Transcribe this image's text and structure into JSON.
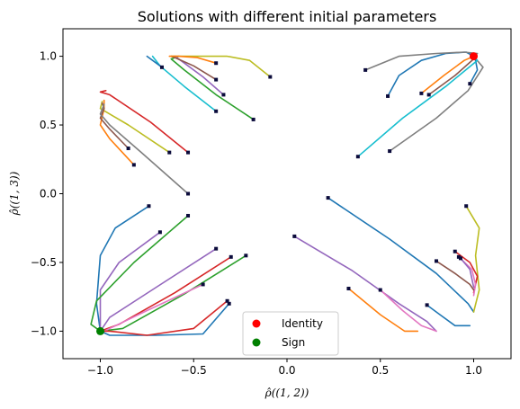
{
  "chart_data": {
    "type": "line",
    "title": "Solutions with different initial parameters",
    "xlabel": "ρ̂((1, 2))",
    "ylabel": "ρ̂((1, 3))",
    "xlim": [
      -1.2,
      1.2
    ],
    "ylim": [
      -1.2,
      1.2
    ],
    "x_ticks": [
      -1.0,
      -0.5,
      0.0,
      0.5,
      1.0
    ],
    "x_tick_labels": [
      "−1.0",
      "−0.5",
      "0.0",
      "0.5",
      "1.0"
    ],
    "y_ticks": [
      -1.0,
      -0.5,
      0.0,
      0.5,
      1.0
    ],
    "y_tick_labels": [
      "−1.0",
      "−0.5",
      "0.0",
      "0.5",
      "1.0"
    ],
    "grid": false,
    "legend_position": "bottom-center",
    "legend": [
      {
        "label": "Identity",
        "color": "#ff0000"
      },
      {
        "label": "Sign",
        "color": "#008000"
      }
    ],
    "endpoints": [
      {
        "name": "Identity",
        "x": 1.0,
        "y": 1.0,
        "color": "#ff0000"
      },
      {
        "name": "Sign",
        "x": -1.0,
        "y": -1.0,
        "color": "#008000"
      }
    ],
    "start_marker_color": "#0b0b3b",
    "trajectories": [
      {
        "color": "#1f77b4",
        "points": [
          [
            0.54,
            0.71
          ],
          [
            0.6,
            0.86
          ],
          [
            0.72,
            0.97
          ],
          [
            0.85,
            1.02
          ],
          [
            0.96,
            1.03
          ],
          [
            1.0,
            1.0
          ]
        ]
      },
      {
        "color": "#7f7f7f",
        "points": [
          [
            0.42,
            0.9
          ],
          [
            0.6,
            1.0
          ],
          [
            0.8,
            1.02
          ],
          [
            0.95,
            1.03
          ],
          [
            1.02,
            1.02
          ],
          [
            1.0,
            1.0
          ]
        ]
      },
      {
        "color": "#ff7f0e",
        "points": [
          [
            0.72,
            0.73
          ],
          [
            0.84,
            0.86
          ],
          [
            0.95,
            0.97
          ],
          [
            1.0,
            1.0
          ]
        ]
      },
      {
        "color": "#8c564b",
        "points": [
          [
            0.76,
            0.72
          ],
          [
            0.9,
            0.86
          ],
          [
            1.0,
            0.98
          ],
          [
            1.0,
            1.0
          ]
        ]
      },
      {
        "color": "#1f77b4",
        "points": [
          [
            0.98,
            0.8
          ],
          [
            1.02,
            0.9
          ],
          [
            1.01,
            0.97
          ],
          [
            1.0,
            1.0
          ]
        ]
      },
      {
        "color": "#7f7f7f",
        "points": [
          [
            0.55,
            0.31
          ],
          [
            0.8,
            0.55
          ],
          [
            0.97,
            0.75
          ],
          [
            1.05,
            0.92
          ],
          [
            1.0,
            1.0
          ]
        ]
      },
      {
        "color": "#17becf",
        "points": [
          [
            0.38,
            0.27
          ],
          [
            0.62,
            0.55
          ],
          [
            0.85,
            0.78
          ],
          [
            1.02,
            0.97
          ],
          [
            1.0,
            1.0
          ]
        ]
      },
      {
        "color": "#2ca02c",
        "points": [
          [
            -0.18,
            0.54
          ],
          [
            -0.38,
            0.72
          ],
          [
            -0.55,
            0.9
          ],
          [
            -0.62,
            0.98
          ],
          [
            -0.58,
            1.0
          ]
        ]
      },
      {
        "color": "#bcbd22",
        "points": [
          [
            -0.09,
            0.85
          ],
          [
            -0.2,
            0.97
          ],
          [
            -0.32,
            1.0
          ],
          [
            -0.45,
            1.0
          ],
          [
            -0.62,
            1.0
          ]
        ]
      },
      {
        "color": "#9467bd",
        "points": [
          [
            -0.34,
            0.72
          ],
          [
            -0.45,
            0.85
          ],
          [
            -0.55,
            0.95
          ],
          [
            -0.6,
            1.0
          ]
        ]
      },
      {
        "color": "#8c564b",
        "points": [
          [
            -0.38,
            0.83
          ],
          [
            -0.5,
            0.93
          ],
          [
            -0.6,
            0.99
          ],
          [
            -0.62,
            1.0
          ]
        ]
      },
      {
        "color": "#ff7f0e",
        "points": [
          [
            -0.38,
            0.95
          ],
          [
            -0.48,
            0.99
          ],
          [
            -0.58,
            1.0
          ],
          [
            -0.63,
            1.0
          ]
        ]
      },
      {
        "color": "#17becf",
        "points": [
          [
            -0.38,
            0.6
          ],
          [
            -0.55,
            0.78
          ],
          [
            -0.68,
            0.93
          ],
          [
            -0.72,
            1.0
          ]
        ]
      },
      {
        "color": "#1f77b4",
        "points": [
          [
            -0.67,
            0.92
          ],
          [
            -0.72,
            0.97
          ],
          [
            -0.75,
            1.0
          ]
        ]
      },
      {
        "color": "#d62728",
        "points": [
          [
            -0.53,
            0.3
          ],
          [
            -0.73,
            0.52
          ],
          [
            -0.95,
            0.72
          ],
          [
            -1.0,
            0.74
          ],
          [
            -0.97,
            0.75
          ]
        ]
      },
      {
        "color": "#bcbd22",
        "points": [
          [
            -0.63,
            0.3
          ],
          [
            -0.85,
            0.5
          ],
          [
            -1.0,
            0.62
          ],
          [
            -0.99,
            0.67
          ]
        ]
      },
      {
        "color": "#ff7f0e",
        "points": [
          [
            -0.82,
            0.21
          ],
          [
            -0.95,
            0.4
          ],
          [
            -1.0,
            0.5
          ],
          [
            -0.98,
            0.62
          ],
          [
            -0.98,
            0.68
          ]
        ]
      },
      {
        "color": "#8c564b",
        "points": [
          [
            -0.85,
            0.33
          ],
          [
            -0.95,
            0.47
          ],
          [
            -1.0,
            0.55
          ],
          [
            -0.98,
            0.62
          ],
          [
            -0.99,
            0.66
          ]
        ]
      },
      {
        "color": "#7f7f7f",
        "points": [
          [
            -0.53,
            0.0
          ],
          [
            -0.78,
            0.3
          ],
          [
            -0.95,
            0.5
          ],
          [
            -1.0,
            0.58
          ],
          [
            -0.98,
            0.65
          ]
        ]
      },
      {
        "color": "#1f77b4",
        "points": [
          [
            -0.74,
            -0.09
          ],
          [
            -0.92,
            -0.25
          ],
          [
            -1.0,
            -0.45
          ],
          [
            -1.02,
            -0.8
          ],
          [
            -1.0,
            -1.0
          ]
        ]
      },
      {
        "color": "#9467bd",
        "points": [
          [
            -0.68,
            -0.28
          ],
          [
            -0.9,
            -0.5
          ],
          [
            -1.0,
            -0.7
          ],
          [
            -1.0,
            -1.0
          ]
        ]
      },
      {
        "color": "#2ca02c",
        "points": [
          [
            -0.53,
            -0.16
          ],
          [
            -0.82,
            -0.5
          ],
          [
            -1.02,
            -0.78
          ],
          [
            -1.05,
            -0.95
          ],
          [
            -1.0,
            -1.0
          ]
        ]
      },
      {
        "color": "#9467bd",
        "points": [
          [
            -0.38,
            -0.4
          ],
          [
            -0.7,
            -0.68
          ],
          [
            -0.95,
            -0.9
          ],
          [
            -1.0,
            -1.0
          ]
        ]
      },
      {
        "color": "#d62728",
        "points": [
          [
            -0.3,
            -0.46
          ],
          [
            -0.6,
            -0.72
          ],
          [
            -0.9,
            -0.95
          ],
          [
            -1.0,
            -1.0
          ]
        ]
      },
      {
        "color": "#2ca02c",
        "points": [
          [
            -0.22,
            -0.45
          ],
          [
            -0.55,
            -0.73
          ],
          [
            -0.88,
            -0.98
          ],
          [
            -1.0,
            -1.0
          ]
        ]
      },
      {
        "color": "#e377c2",
        "points": [
          [
            -0.45,
            -0.66
          ],
          [
            -0.75,
            -0.85
          ],
          [
            -0.98,
            -1.0
          ],
          [
            -1.0,
            -1.0
          ]
        ]
      },
      {
        "color": "#1f77b4",
        "points": [
          [
            -0.31,
            -0.8
          ],
          [
            -0.45,
            -1.02
          ],
          [
            -0.7,
            -1.03
          ],
          [
            -0.95,
            -1.03
          ],
          [
            -1.0,
            -1.0
          ]
        ]
      },
      {
        "color": "#d62728",
        "points": [
          [
            -0.32,
            -0.78
          ],
          [
            -0.5,
            -0.98
          ],
          [
            -0.75,
            -1.03
          ],
          [
            -0.95,
            -1.0
          ],
          [
            -1.0,
            -1.0
          ]
        ]
      },
      {
        "color": "#1f77b4",
        "points": [
          [
            0.22,
            -0.03
          ],
          [
            0.55,
            -0.33
          ],
          [
            0.8,
            -0.58
          ],
          [
            0.97,
            -0.8
          ],
          [
            1.0,
            -0.86
          ]
        ]
      },
      {
        "color": "#9467bd",
        "points": [
          [
            0.04,
            -0.31
          ],
          [
            0.35,
            -0.56
          ],
          [
            0.6,
            -0.8
          ],
          [
            0.75,
            -0.93
          ],
          [
            0.8,
            -1.0
          ]
        ]
      },
      {
        "color": "#ff7f0e",
        "points": [
          [
            0.33,
            -0.69
          ],
          [
            0.5,
            -0.88
          ],
          [
            0.63,
            -1.0
          ],
          [
            0.7,
            -1.0
          ]
        ]
      },
      {
        "color": "#e377c2",
        "points": [
          [
            0.5,
            -0.7
          ],
          [
            0.62,
            -0.85
          ],
          [
            0.72,
            -0.96
          ],
          [
            0.8,
            -1.0
          ]
        ]
      },
      {
        "color": "#1f77b4",
        "points": [
          [
            0.75,
            -0.81
          ],
          [
            0.82,
            -0.88
          ],
          [
            0.9,
            -0.96
          ],
          [
            0.98,
            -0.96
          ]
        ]
      },
      {
        "color": "#bcbd22",
        "points": [
          [
            0.96,
            -0.09
          ],
          [
            1.03,
            -0.25
          ],
          [
            1.01,
            -0.45
          ],
          [
            1.03,
            -0.7
          ],
          [
            1.0,
            -0.86
          ]
        ]
      },
      {
        "color": "#d62728",
        "points": [
          [
            0.9,
            -0.42
          ],
          [
            0.98,
            -0.5
          ],
          [
            1.02,
            -0.6
          ],
          [
            1.0,
            -0.72
          ]
        ]
      },
      {
        "color": "#e377c2",
        "points": [
          [
            0.92,
            -0.46
          ],
          [
            0.99,
            -0.55
          ],
          [
            1.01,
            -0.66
          ],
          [
            1.0,
            -0.74
          ]
        ]
      },
      {
        "color": "#9467bd",
        "points": [
          [
            0.93,
            -0.47
          ],
          [
            0.98,
            -0.55
          ],
          [
            1.0,
            -0.68
          ]
        ]
      },
      {
        "color": "#8c564b",
        "points": [
          [
            0.8,
            -0.49
          ],
          [
            0.9,
            -0.58
          ],
          [
            0.98,
            -0.66
          ],
          [
            1.0,
            -0.7
          ]
        ]
      }
    ]
  }
}
